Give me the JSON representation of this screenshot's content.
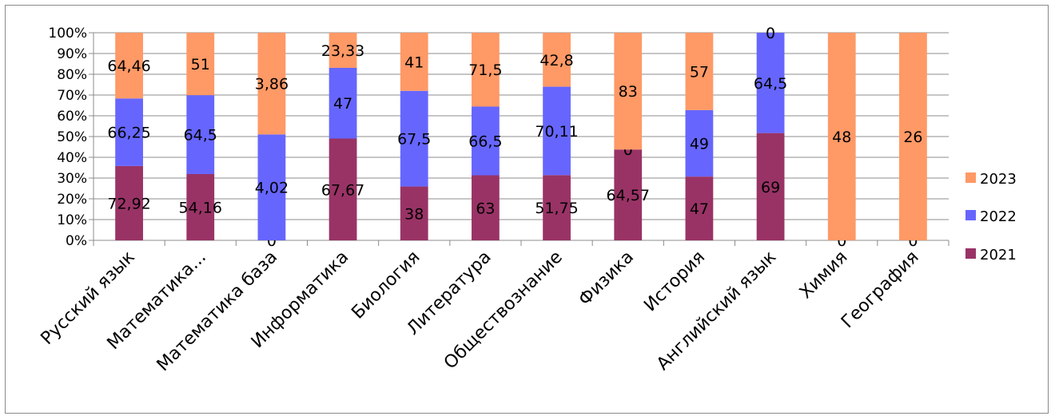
{
  "chart_data": {
    "type": "bar",
    "stacked": "percent",
    "categories": [
      "Русский язык",
      "Математика...",
      "Математика база",
      "Информатика",
      "Биология",
      "Литература",
      "Обществознание",
      "Физика",
      "История",
      "Английский язык",
      "Химия",
      "География"
    ],
    "series": [
      {
        "name": "2021",
        "color": "#993366",
        "values": [
          72.92,
          54.16,
          0,
          67.67,
          38,
          63,
          51.75,
          64.57,
          47,
          69,
          0,
          0
        ],
        "labels": [
          "72,92",
          "54,16",
          "0",
          "67,67",
          "38",
          "63",
          "51,75",
          "64,57",
          "47",
          "69",
          "0",
          "0"
        ]
      },
      {
        "name": "2022",
        "color": "#6666ff",
        "values": [
          66.25,
          64.5,
          4.02,
          47,
          67.5,
          66.5,
          70.11,
          0,
          49,
          64.5,
          null,
          null
        ],
        "labels": [
          "66,25",
          "64,5",
          "4,02",
          "47",
          "67,5",
          "66,5",
          "70,11",
          "0",
          "49",
          "64,5",
          "",
          ""
        ]
      },
      {
        "name": "2023",
        "color": "#ff9966",
        "values": [
          64.46,
          51,
          3.86,
          23.33,
          41,
          71.5,
          42.8,
          83,
          57,
          0,
          48,
          26
        ],
        "labels": [
          "64,46",
          "51",
          "3,86",
          "23,33",
          "41",
          "71,5",
          "42,8",
          "83",
          "57",
          "0",
          "48",
          "26"
        ]
      }
    ],
    "yticks": [
      "0%",
      "10%",
      "20%",
      "30%",
      "40%",
      "50%",
      "60%",
      "70%",
      "80%",
      "90%",
      "100%"
    ],
    "ylim": [
      0,
      100
    ],
    "grid": true,
    "legend": "right"
  }
}
